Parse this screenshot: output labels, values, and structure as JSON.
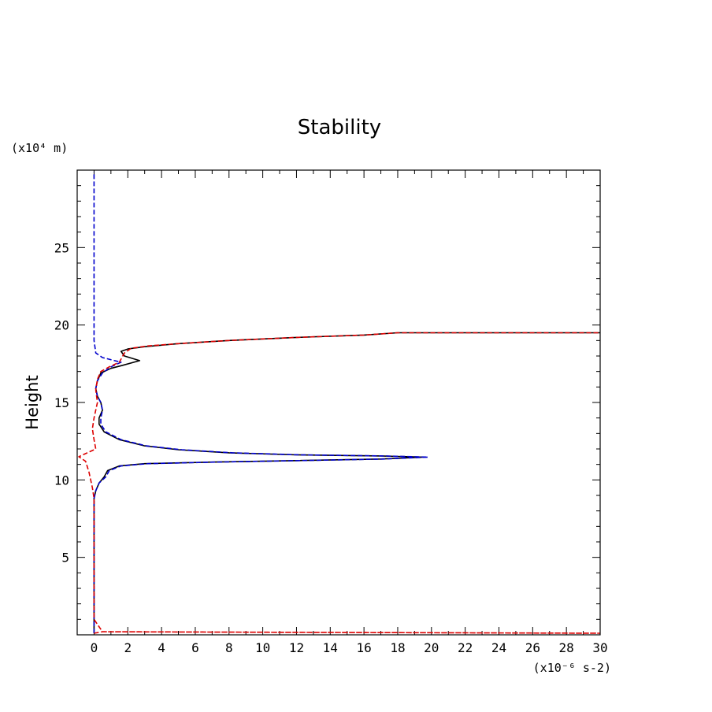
{
  "chart_data": {
    "type": "line",
    "title": "Stability",
    "ylabel": "Height",
    "xlabel": "",
    "x_unit": "(x10⁻⁶ s-2)",
    "y_unit": "(x10⁴ m)",
    "xlim": [
      -1,
      30
    ],
    "ylim": [
      0,
      30
    ],
    "x_ticks": [
      0,
      2,
      4,
      6,
      8,
      10,
      12,
      14,
      16,
      18,
      20,
      22,
      24,
      26,
      28,
      30
    ],
    "y_ticks": [
      5,
      10,
      15,
      20,
      25
    ],
    "series": [
      {
        "name": "black-solid",
        "color": "#000000",
        "style": "solid",
        "points": [
          [
            0,
            0.1
          ],
          [
            0,
            8.0
          ],
          [
            0,
            8.8
          ],
          [
            0.1,
            9.3
          ],
          [
            0.3,
            9.8
          ],
          [
            0.6,
            10.2
          ],
          [
            0.8,
            10.6
          ],
          [
            1.5,
            10.9
          ],
          [
            3,
            11.05
          ],
          [
            7,
            11.15
          ],
          [
            12,
            11.25
          ],
          [
            17,
            11.35
          ],
          [
            19.5,
            11.47
          ],
          [
            17,
            11.55
          ],
          [
            12,
            11.62
          ],
          [
            8,
            11.75
          ],
          [
            5,
            11.95
          ],
          [
            3,
            12.2
          ],
          [
            1.5,
            12.6
          ],
          [
            0.6,
            13.1
          ],
          [
            0.3,
            13.6
          ],
          [
            0.3,
            14.0
          ],
          [
            0.5,
            14.5
          ],
          [
            0.4,
            15.0
          ],
          [
            0.2,
            15.4
          ],
          [
            0.1,
            15.9
          ],
          [
            0.2,
            16.4
          ],
          [
            0.4,
            16.9
          ],
          [
            1,
            17.2
          ],
          [
            1.7,
            17.4
          ],
          [
            2.7,
            17.7
          ],
          [
            1.8,
            18.0
          ],
          [
            1.6,
            18.3
          ],
          [
            2,
            18.45
          ],
          [
            3,
            18.6
          ],
          [
            5,
            18.8
          ],
          [
            8,
            19.0
          ],
          [
            12,
            19.2
          ],
          [
            16,
            19.35
          ],
          [
            18,
            19.5
          ],
          [
            30,
            19.5
          ]
        ]
      },
      {
        "name": "blue-dashed",
        "color": "#0000cc",
        "style": "dashed",
        "points": [
          [
            0,
            0.1
          ],
          [
            0,
            8.0
          ],
          [
            0,
            8.8
          ],
          [
            0.1,
            9.3
          ],
          [
            0.3,
            9.8
          ],
          [
            0.7,
            10.2
          ],
          [
            0.9,
            10.6
          ],
          [
            1.6,
            10.9
          ],
          [
            3.2,
            11.05
          ],
          [
            7.2,
            11.15
          ],
          [
            12.2,
            11.25
          ],
          [
            17.2,
            11.35
          ],
          [
            19.8,
            11.47
          ],
          [
            17.2,
            11.55
          ],
          [
            12.2,
            11.62
          ],
          [
            8.2,
            11.75
          ],
          [
            5.2,
            11.95
          ],
          [
            3.1,
            12.2
          ],
          [
            1.6,
            12.6
          ],
          [
            0.7,
            13.1
          ],
          [
            0.4,
            13.6
          ],
          [
            0.4,
            14.0
          ],
          [
            0.5,
            14.5
          ],
          [
            0.4,
            15.0
          ],
          [
            0.2,
            15.4
          ],
          [
            0.1,
            15.9
          ],
          [
            0.2,
            16.4
          ],
          [
            0.5,
            16.9
          ],
          [
            1.0,
            17.3
          ],
          [
            1.6,
            17.6
          ],
          [
            0.5,
            17.9
          ],
          [
            0.1,
            18.2
          ],
          [
            0,
            19
          ],
          [
            0,
            22
          ],
          [
            0,
            26
          ],
          [
            0,
            29.9
          ]
        ]
      },
      {
        "name": "red-dashed",
        "color": "#dd0000",
        "style": "dashed",
        "points": [
          [
            0,
            0.1
          ],
          [
            0.5,
            0.2
          ],
          [
            30,
            0.1
          ],
          [
            0.5,
            0.2
          ],
          [
            0,
            1
          ],
          [
            0,
            8.0
          ],
          [
            0,
            8.8
          ],
          [
            -0.1,
            9.5
          ],
          [
            -0.3,
            10.5
          ],
          [
            -0.5,
            11.2
          ],
          [
            -0.9,
            11.5
          ],
          [
            -0.5,
            11.7
          ],
          [
            0.1,
            12.0
          ],
          [
            0,
            12.6
          ],
          [
            -0.1,
            13.3
          ],
          [
            0,
            14.0
          ],
          [
            0.2,
            15.0
          ],
          [
            0.1,
            15.8
          ],
          [
            0.2,
            16.5
          ],
          [
            0.4,
            17.0
          ],
          [
            0.9,
            17.3
          ],
          [
            1.5,
            17.6
          ],
          [
            1.8,
            18.2
          ],
          [
            2.2,
            18.5
          ],
          [
            3.2,
            18.65
          ],
          [
            5,
            18.8
          ],
          [
            8,
            19.0
          ],
          [
            12,
            19.2
          ],
          [
            16,
            19.35
          ],
          [
            18,
            19.5
          ],
          [
            30,
            19.5
          ]
        ]
      }
    ]
  }
}
